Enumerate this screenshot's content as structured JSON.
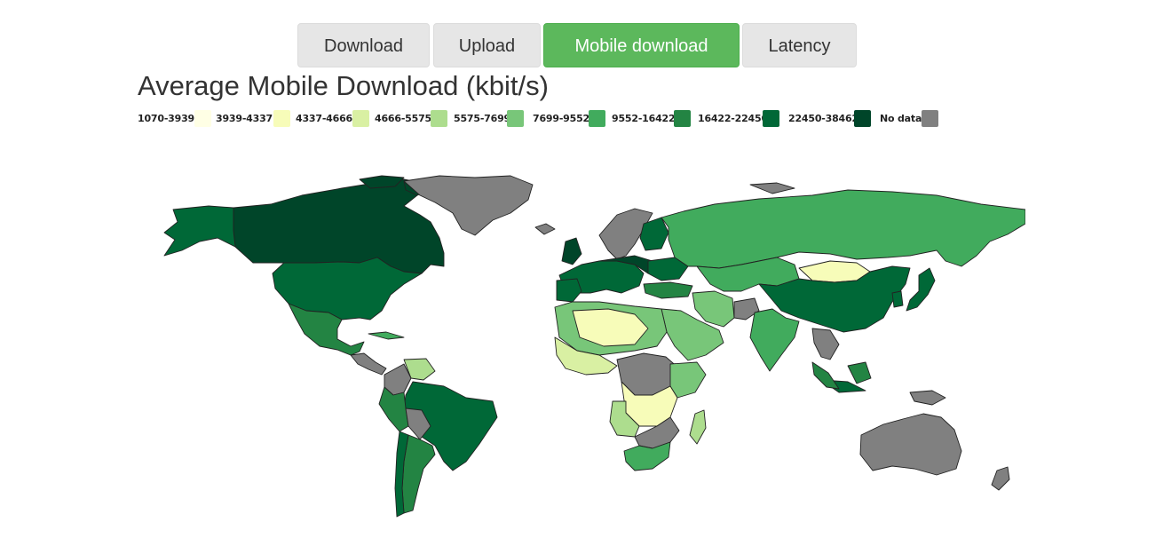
{
  "tabs": [
    {
      "label": "Download",
      "active": false
    },
    {
      "label": "Upload",
      "active": false
    },
    {
      "label": "Mobile download",
      "active": true
    },
    {
      "label": "Latency",
      "active": false
    }
  ],
  "title": "Average Mobile Download (kbit/s)",
  "legend": [
    {
      "label": "1070-3939",
      "color": "#ffffe5"
    },
    {
      "label": "3939-4337",
      "color": "#f7fcb9"
    },
    {
      "label": "4337-4666",
      "color": "#d9f0a3"
    },
    {
      "label": "4666-5575",
      "color": "#addd8e"
    },
    {
      "label": "5575-7699",
      "color": "#78c679"
    },
    {
      "label": "7699-9552",
      "color": "#41ab5d"
    },
    {
      "label": "9552-16422",
      "color": "#238443"
    },
    {
      "label": "16422-22450",
      "color": "#006837"
    },
    {
      "label": "22450-38462",
      "color": "#004529"
    },
    {
      "label": "No data",
      "color": "#808080"
    }
  ]
}
